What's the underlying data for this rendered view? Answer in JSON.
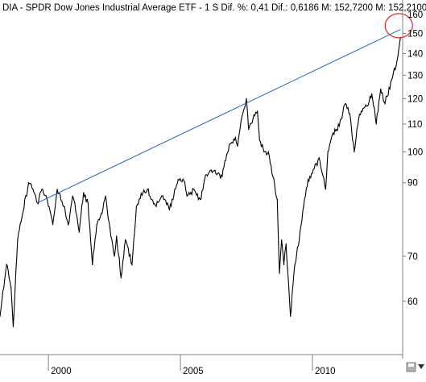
{
  "header": {
    "text": "DIA - SPDR Dow Jones Industrial Average ETF - 1 S  Dif. %: 0,41  Dif.: 0,6186  M: 152,7200  M: 152,2100"
  },
  "colors": {
    "price": "#000000",
    "trendline": "#1f63b8",
    "highlight_circle": "#e03030",
    "axis": "#808080",
    "background": "#ffffff"
  },
  "icons": [
    "save-icon",
    "scroll-down-icon"
  ],
  "chart_data": {
    "type": "line",
    "title": "DIA - SPDR Dow Jones Industrial Average ETF - 1 S",
    "scale": "log",
    "ylim": [
      50,
      160
    ],
    "yticks": [
      60,
      70,
      90,
      100,
      110,
      120,
      130,
      140,
      150,
      160
    ],
    "xlim": [
      "1998-03",
      "2013-06"
    ],
    "xticks": [
      {
        "label": "2000",
        "date": "2000-01"
      },
      {
        "label": "2005",
        "date": "2005-01"
      },
      {
        "label": "2010",
        "date": "2010-01"
      }
    ],
    "grid": false,
    "series": [
      {
        "kind": "price",
        "x": [
          "1998-03",
          "1998-06",
          "1998-08",
          "1998-09",
          "1998-11",
          "1999-01",
          "1999-04",
          "1999-06",
          "1999-08",
          "1999-10",
          "1999-12",
          "2000-01",
          "2000-03",
          "2000-05",
          "2000-08",
          "2000-10",
          "2000-12",
          "2001-01",
          "2001-03",
          "2001-05",
          "2001-07",
          "2001-09",
          "2001-11",
          "2002-01",
          "2002-03",
          "2002-05",
          "2002-07",
          "2002-08",
          "2002-10",
          "2002-12",
          "2003-03",
          "2003-05",
          "2003-08",
          "2003-10",
          "2003-12",
          "2004-02",
          "2004-05",
          "2004-08",
          "2004-10",
          "2004-12",
          "2005-03",
          "2005-04",
          "2005-07",
          "2005-10",
          "2005-12",
          "2006-03",
          "2006-06",
          "2006-08",
          "2006-10",
          "2006-12",
          "2007-02",
          "2007-03",
          "2007-05",
          "2007-07",
          "2007-08",
          "2007-10",
          "2007-12",
          "2008-01",
          "2008-03",
          "2008-05",
          "2008-07",
          "2008-09",
          "2008-10",
          "2008-11",
          "2008-12",
          "2009-01",
          "2009-03",
          "2009-05",
          "2009-07",
          "2009-09",
          "2009-11",
          "2010-01",
          "2010-04",
          "2010-07",
          "2010-08",
          "2010-10",
          "2010-12",
          "2011-02",
          "2011-04",
          "2011-06",
          "2011-08",
          "2011-10",
          "2011-12",
          "2012-02",
          "2012-04",
          "2012-06",
          "2012-08",
          "2012-10",
          "2012-11",
          "2013-01",
          "2013-03",
          "2013-05"
        ],
        "values": [
          57,
          68,
          63,
          55,
          74,
          80,
          90,
          88,
          84,
          88,
          86,
          83,
          78,
          88,
          83,
          78,
          86,
          84,
          76,
          87,
          84,
          68,
          78,
          81,
          86,
          77,
          70,
          75,
          65,
          74,
          68,
          83,
          87,
          88,
          85,
          83,
          86,
          82,
          86,
          91,
          90,
          86,
          88,
          85,
          91,
          94,
          93,
          92,
          99,
          103,
          105,
          102,
          113,
          120,
          108,
          112,
          115,
          104,
          100,
          100,
          92,
          85,
          66,
          74,
          68,
          73,
          57,
          68,
          74,
          83,
          91,
          93,
          98,
          88,
          100,
          106,
          108,
          112,
          118,
          114,
          100,
          112,
          116,
          117,
          122,
          110,
          124,
          118,
          121,
          128,
          134,
          148
        ]
      }
    ],
    "trendline": {
      "points": [
        {
          "x": "1999-08",
          "y": 84
        },
        {
          "x": "2013-05",
          "y": 152
        }
      ]
    },
    "annotations": [
      {
        "type": "circle",
        "x": "2013-05",
        "y": 154
      }
    ]
  }
}
